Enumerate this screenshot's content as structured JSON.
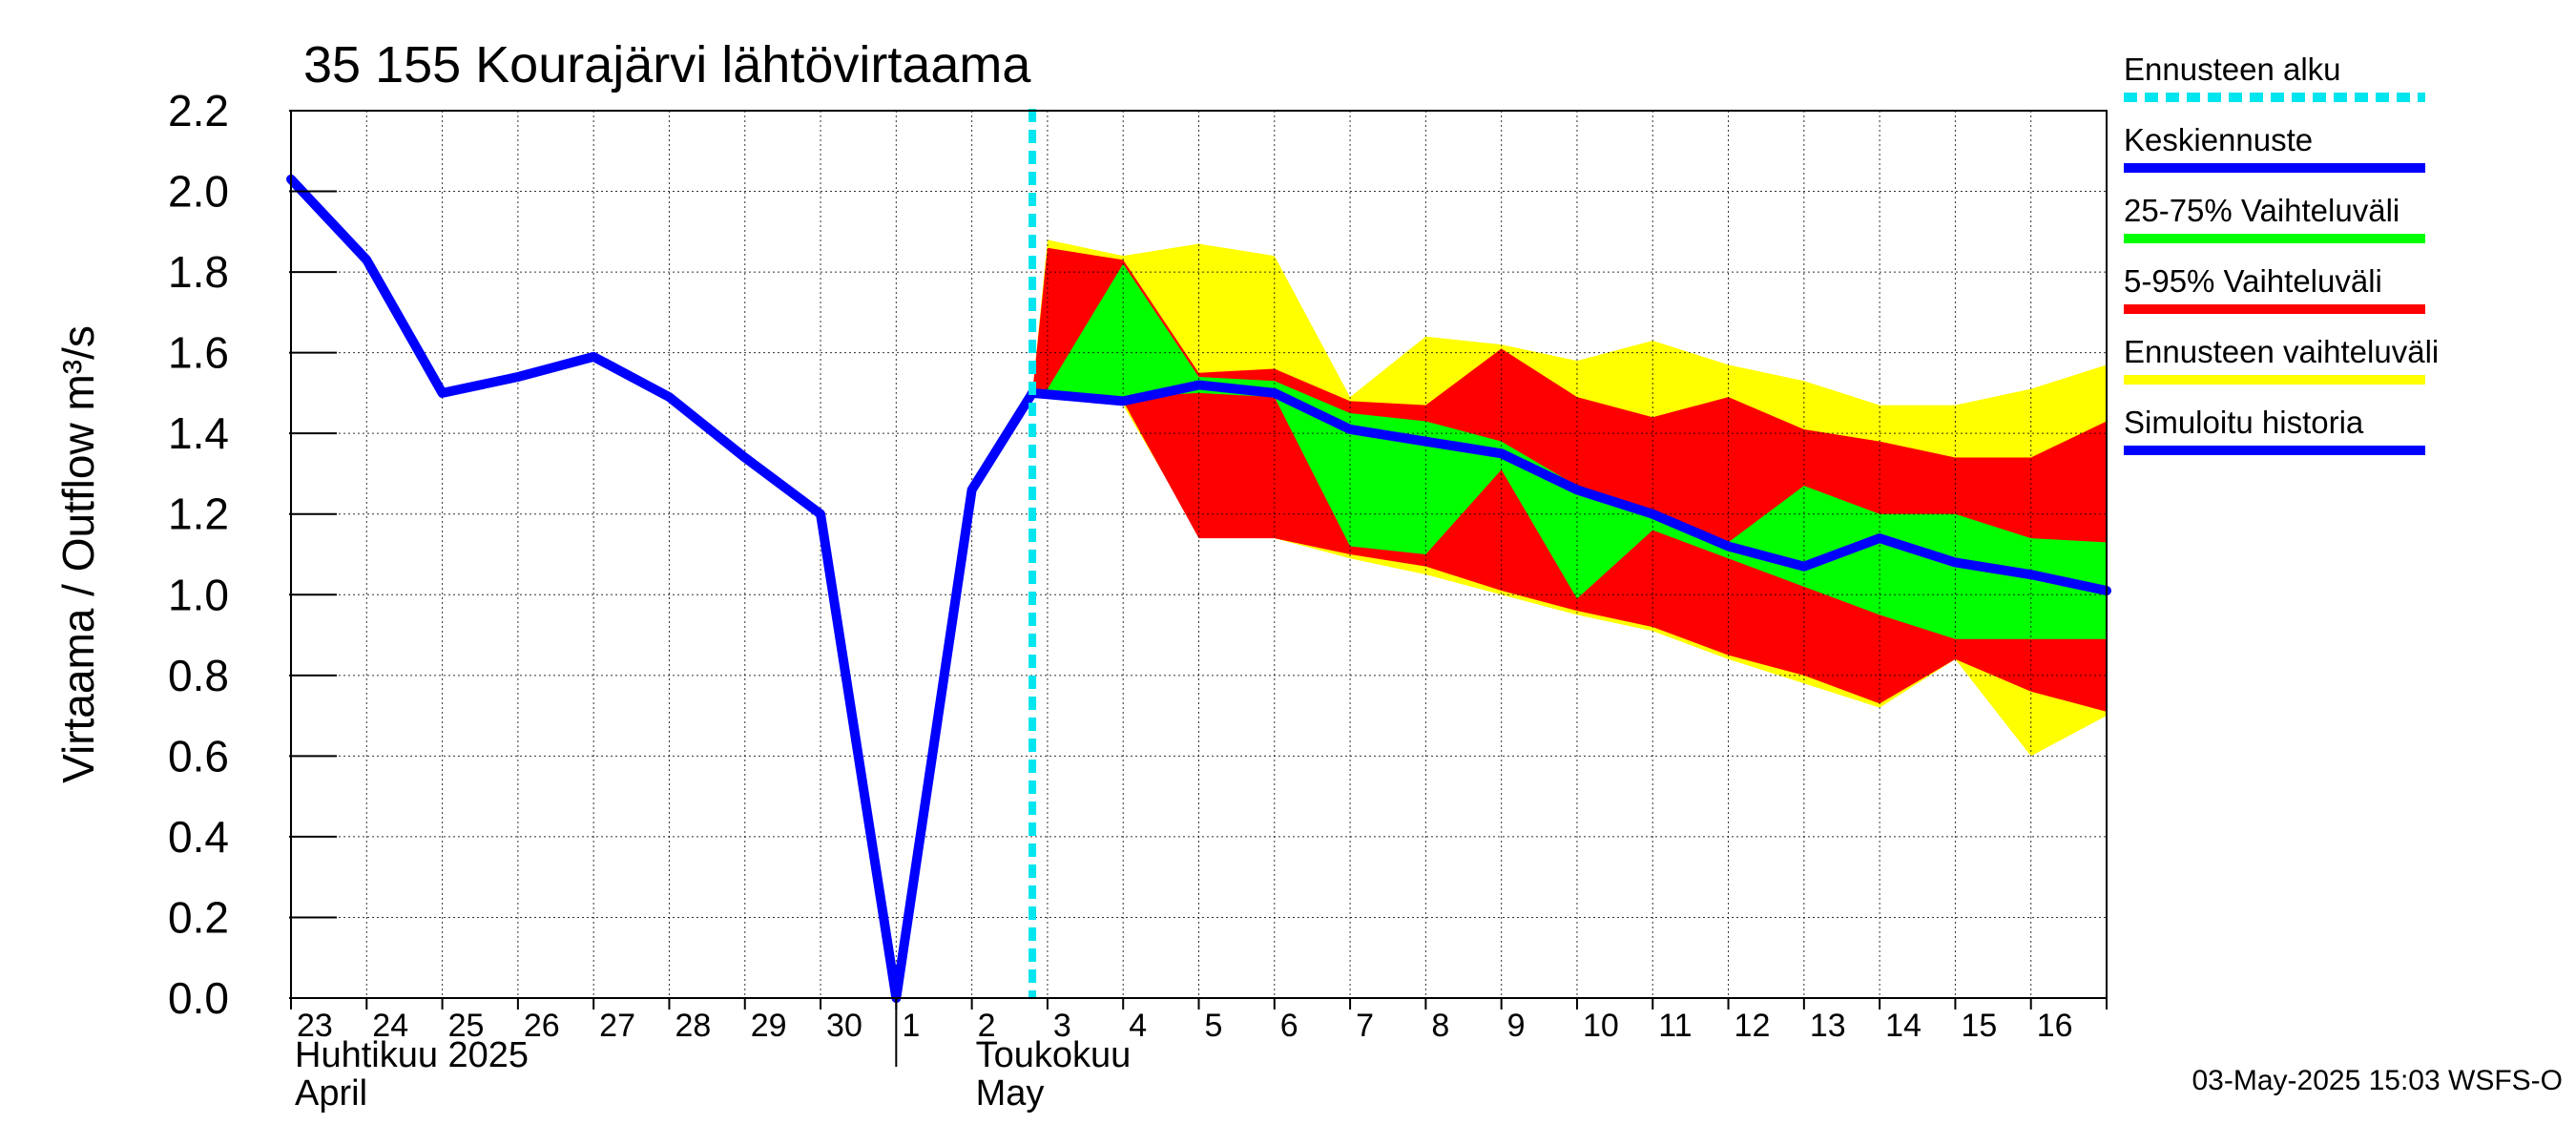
{
  "chart_data": {
    "type": "area",
    "title": "35 155 Kourajärvi lähtövirtaama",
    "ylabel": "Virtaama / Outflow    m³/s",
    "ylim": [
      0.0,
      2.2
    ],
    "yticks": [
      "0.0",
      "0.2",
      "0.4",
      "0.6",
      "0.8",
      "1.0",
      "1.2",
      "1.4",
      "1.6",
      "1.8",
      "2.0",
      "2.2"
    ],
    "x_start": 23,
    "x_end": 47.0,
    "x_days": [
      "23",
      "24",
      "25",
      "26",
      "27",
      "28",
      "29",
      "30",
      "1",
      "2",
      "3",
      "4",
      "5",
      "6",
      "7",
      "8",
      "9",
      "10",
      "11",
      "12",
      "13",
      "14",
      "15",
      "16"
    ],
    "month_boundary_x": 31,
    "months": [
      {
        "x": 23,
        "line1": "Huhtikuu  2025",
        "line2": "April"
      },
      {
        "x": 32,
        "line1": "Toukokuu",
        "line2": "May"
      }
    ],
    "forecast_start_x": 32.8,
    "series": [
      {
        "name": "Ennusteen vaihteluväli",
        "kind": "band",
        "color": "#ffff00",
        "x": [
          32,
          32.8,
          33,
          34,
          35,
          36,
          37,
          38,
          39,
          40,
          41,
          42,
          43,
          44,
          45,
          46,
          47
        ],
        "upper": [
          1.26,
          1.5,
          1.88,
          1.84,
          1.87,
          1.84,
          1.49,
          1.64,
          1.62,
          1.58,
          1.63,
          1.57,
          1.53,
          1.47,
          1.47,
          1.51,
          1.57
        ],
        "lower": [
          1.26,
          1.5,
          1.5,
          1.47,
          1.15,
          1.14,
          1.09,
          1.05,
          1.0,
          0.95,
          0.91,
          0.84,
          0.78,
          0.72,
          0.84,
          0.6,
          0.7
        ]
      },
      {
        "name": "5-95% Vaihteluväli",
        "kind": "band",
        "color": "#ff0000",
        "x": [
          32,
          32.8,
          33,
          34,
          35,
          36,
          37,
          38,
          39,
          40,
          41,
          42,
          43,
          44,
          45,
          46,
          47
        ],
        "upper": [
          1.26,
          1.5,
          1.86,
          1.83,
          1.55,
          1.56,
          1.48,
          1.47,
          1.61,
          1.49,
          1.44,
          1.49,
          1.41,
          1.38,
          1.34,
          1.34,
          1.43
        ],
        "lower": [
          1.26,
          1.5,
          1.5,
          1.48,
          1.14,
          1.14,
          1.1,
          1.07,
          1.01,
          0.96,
          0.92,
          0.85,
          0.8,
          0.73,
          0.84,
          0.76,
          0.71
        ]
      },
      {
        "name": "25-75% Vaihteluväli",
        "kind": "band",
        "color": "#00ff00",
        "x": [
          32.8,
          33,
          34,
          35,
          36,
          37,
          38,
          39,
          40,
          41,
          42,
          43,
          44,
          45,
          46,
          47
        ],
        "upper": [
          1.5,
          1.51,
          1.82,
          1.54,
          1.53,
          1.45,
          1.43,
          1.38,
          1.27,
          1.21,
          1.13,
          1.27,
          1.2,
          1.2,
          1.14,
          1.13
        ],
        "lower": [
          1.5,
          1.5,
          1.49,
          1.5,
          1.49,
          1.12,
          1.1,
          1.31,
          0.99,
          1.16,
          1.09,
          1.02,
          0.95,
          0.89,
          0.89,
          0.89
        ]
      },
      {
        "name": "Simuloitu historia",
        "kind": "line",
        "color": "#0000ff",
        "x": [
          23,
          24,
          25,
          26,
          27,
          28,
          29,
          30,
          31,
          32,
          32.8
        ],
        "y": [
          2.03,
          1.83,
          1.5,
          1.54,
          1.59,
          1.49,
          1.34,
          1.2,
          0.0,
          1.26,
          1.5
        ]
      },
      {
        "name": "Keskiennuste",
        "kind": "line",
        "color": "#0000ff",
        "x": [
          32.8,
          34,
          35,
          36,
          37,
          38,
          39,
          40,
          41,
          42,
          43,
          44,
          45,
          46,
          47
        ],
        "y": [
          1.5,
          1.48,
          1.52,
          1.5,
          1.41,
          1.38,
          1.35,
          1.26,
          1.2,
          1.12,
          1.07,
          1.14,
          1.08,
          1.05,
          1.01
        ]
      }
    ],
    "legend": [
      {
        "label": "Ennusteen alku",
        "color": "#00e5ee",
        "style": "dashed"
      },
      {
        "label": "Keskiennuste",
        "color": "#0000ff",
        "style": "solid"
      },
      {
        "label": "25-75% Vaihteluväli",
        "color": "#00ff00",
        "style": "solid"
      },
      {
        "label": "5-95% Vaihteluväli",
        "color": "#ff0000",
        "style": "solid"
      },
      {
        "label": "Ennusteen vaihteluväli",
        "color": "#ffff00",
        "style": "solid"
      },
      {
        "label": "Simuloitu historia",
        "color": "#0000ff",
        "style": "solid"
      }
    ],
    "footer": "03-May-2025 15:03 WSFS-O"
  }
}
